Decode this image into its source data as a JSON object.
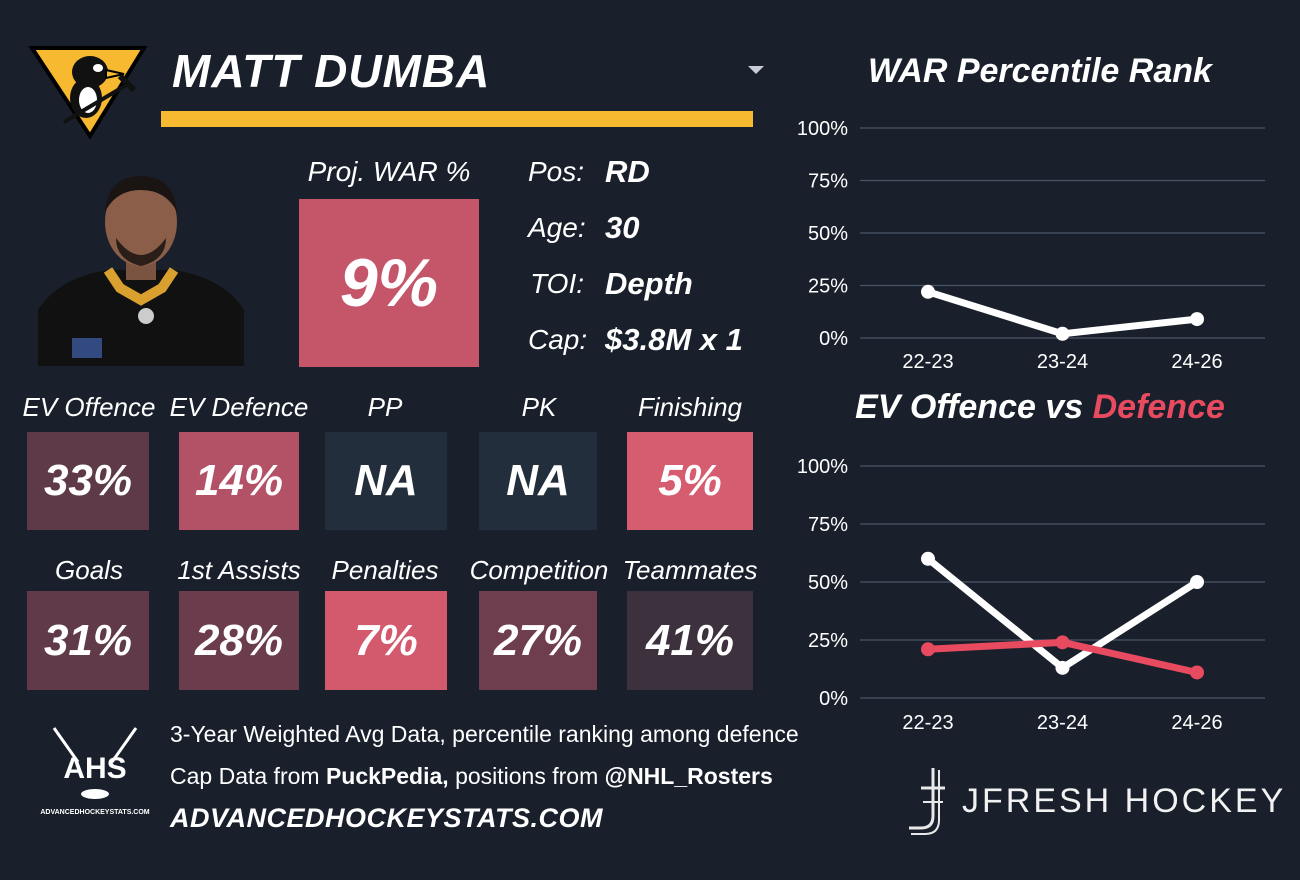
{
  "player": {
    "name": "MATT DUMBA",
    "proj_war_label": "Proj. WAR %",
    "proj_war_value": "9%",
    "info": [
      {
        "label": "Pos:",
        "value": "RD"
      },
      {
        "label": "Age:",
        "value": "30"
      },
      {
        "label": "TOI:",
        "value": "Depth"
      },
      {
        "label": "Cap:",
        "value": "$3.8M x 1"
      }
    ]
  },
  "stats_row1": [
    {
      "label": "EV Offence",
      "value": "33%",
      "color": "#5e3a48"
    },
    {
      "label": "EV Defence",
      "value": "14%",
      "color": "#b35266"
    },
    {
      "label": "PP",
      "value": "NA",
      "color": "#222e3b"
    },
    {
      "label": "PK",
      "value": "NA",
      "color": "#222e3b"
    },
    {
      "label": "Finishing",
      "value": "5%",
      "color": "#d65d70"
    }
  ],
  "stats_row2": [
    {
      "label": "Goals",
      "value": "31%",
      "color": "#603a49"
    },
    {
      "label": "1st Assists",
      "value": "28%",
      "color": "#6a3c4c"
    },
    {
      "label": "Penalties",
      "value": "7%",
      "color": "#d35a6d"
    },
    {
      "label": "Competition",
      "value": "27%",
      "color": "#6e3d4e"
    },
    {
      "label": "Teammates",
      "value": "41%",
      "color": "#3e313e"
    }
  ],
  "colors": {
    "background": "#19202b",
    "accent_gold": "#f7b92f",
    "proj_tile": "#c5566a",
    "grid": "#4a5566",
    "offence_line": "#ffffff",
    "defence_line": "#e84a5f"
  },
  "icons": {
    "team_logo": "pittsburgh-penguins-logo",
    "headshot": "player-headshot",
    "dropdown": "chevron-down-icon",
    "ahs_logo": "ahs-logo",
    "jfresh_logo": "jfresh-hockey-stick-logo"
  },
  "footer": {
    "line1": "3-Year Weighted Avg Data, percentile ranking among defence",
    "line2_prefix": "Cap Data from ",
    "line2_bold1": "PuckPedia,",
    "line2_mid": " positions from ",
    "line2_bold2": "@NHL_Rosters",
    "url": "ADVANCEDHOCKEYSTATS.COM",
    "ahs_text": "AHS",
    "ahs_small": "ADVANCEDHOCKEYSTATS.COM",
    "jfresh": "JFRESH HOCKEY"
  },
  "chart_data": [
    {
      "type": "line",
      "title": "WAR Percentile Rank",
      "categories": [
        "22-23",
        "23-24",
        "24-26"
      ],
      "yticks": [
        "0%",
        "25%",
        "50%",
        "75%",
        "100%"
      ],
      "ylim": [
        0,
        100
      ],
      "series": [
        {
          "values": [
            22,
            2,
            9
          ],
          "color": "#ffffff"
        }
      ],
      "grid": true
    },
    {
      "type": "line",
      "title_part1": "EV Offence vs ",
      "title_part2": "Defence",
      "categories": [
        "22-23",
        "23-24",
        "24-26"
      ],
      "yticks": [
        "0%",
        "25%",
        "50%",
        "75%",
        "100%"
      ],
      "ylim": [
        0,
        100
      ],
      "series": [
        {
          "values": [
            60,
            13,
            50
          ],
          "color": "#ffffff"
        },
        {
          "values": [
            21,
            24,
            11
          ],
          "color": "#e84a5f"
        }
      ],
      "grid": true
    }
  ]
}
